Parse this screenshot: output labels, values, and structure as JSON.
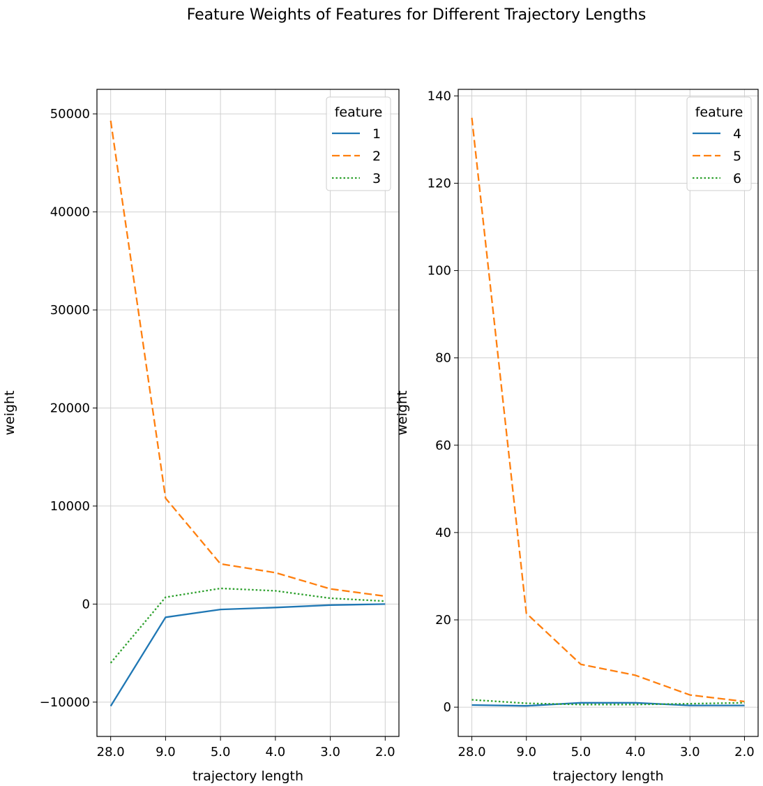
{
  "figure": {
    "suptitle": "Feature Weights of Features for Different Trajectory Lengths"
  },
  "chart_data": [
    {
      "type": "line",
      "categories": [
        "28.0",
        "9.0",
        "5.0",
        "4.0",
        "3.0",
        "2.0"
      ],
      "xlabel": "trajectory length",
      "ylabel": "weight",
      "ylim": [
        -13500,
        52500
      ],
      "yticks": [
        -10000,
        0,
        10000,
        20000,
        30000,
        40000,
        50000
      ],
      "ytick_labels": [
        "−10000",
        "0",
        "10000",
        "20000",
        "30000",
        "40000",
        "50000"
      ],
      "grid": true,
      "legend": {
        "title": "feature",
        "placement": "top-right"
      },
      "series": [
        {
          "name": "1",
          "color": "#1f77b4",
          "style": "solid",
          "values": [
            -10400,
            -1350,
            -550,
            -350,
            -100,
            0
          ]
        },
        {
          "name": "2",
          "color": "#ff7f0e",
          "style": "dashed",
          "values": [
            49300,
            10800,
            4100,
            3200,
            1550,
            800
          ]
        },
        {
          "name": "3",
          "color": "#2ca02c",
          "style": "dotted",
          "values": [
            -6000,
            700,
            1600,
            1350,
            600,
            300
          ]
        }
      ]
    },
    {
      "type": "line",
      "categories": [
        "28.0",
        "9.0",
        "5.0",
        "4.0",
        "3.0",
        "2.0"
      ],
      "xlabel": "trajectory length",
      "ylabel": "weight",
      "ylim": [
        -6.7,
        141.5
      ],
      "yticks": [
        0,
        20,
        40,
        60,
        80,
        100,
        120,
        140
      ],
      "ytick_labels": [
        "0",
        "20",
        "40",
        "60",
        "80",
        "100",
        "120",
        "140"
      ],
      "grid": true,
      "legend": {
        "title": "feature",
        "placement": "top-right"
      },
      "series": [
        {
          "name": "4",
          "color": "#1f77b4",
          "style": "solid",
          "values": [
            0.5,
            0.3,
            1.0,
            1.0,
            0.4,
            0.4
          ]
        },
        {
          "name": "5",
          "color": "#ff7f0e",
          "style": "dashed",
          "values": [
            135.0,
            21.5,
            9.8,
            7.3,
            2.8,
            1.3
          ]
        },
        {
          "name": "6",
          "color": "#2ca02c",
          "style": "dotted",
          "values": [
            1.7,
            0.9,
            0.6,
            0.6,
            0.8,
            1.0
          ]
        }
      ]
    }
  ]
}
